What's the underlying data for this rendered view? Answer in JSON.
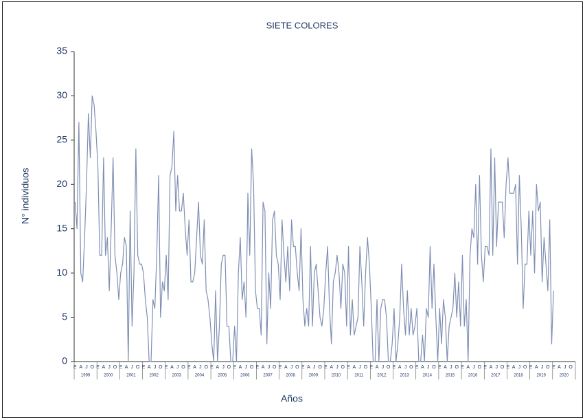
{
  "chart_data": {
    "type": "line",
    "title": "SIETE COLORES",
    "y_label": "N° individuos",
    "x_label": "Años",
    "categories": [
      "E",
      null,
      null,
      "A",
      null,
      null,
      "J",
      null,
      null,
      "O",
      null,
      null,
      "E",
      null,
      null,
      "A",
      null,
      null,
      "J",
      null,
      null,
      "O",
      null,
      null,
      "E",
      null,
      null,
      "A",
      null,
      null,
      "J",
      null,
      null,
      "O",
      null,
      null,
      "E",
      null,
      null,
      "A",
      null,
      null,
      "J",
      null,
      null,
      "O",
      null,
      null,
      "E",
      null,
      null,
      "A",
      null,
      null,
      "J",
      null,
      null,
      "O",
      null,
      null,
      "E",
      null,
      null,
      "A",
      null,
      null,
      "J",
      null,
      null,
      "O",
      null,
      null,
      "E",
      null,
      null,
      "A",
      null,
      null,
      "J",
      null,
      null,
      "O",
      null,
      null,
      "E",
      null,
      null,
      "A",
      null,
      null,
      "J",
      null,
      null,
      "O",
      null,
      null,
      "E",
      null,
      null,
      "A",
      null,
      null,
      "J",
      null,
      null,
      "O",
      null,
      null,
      "E",
      null,
      null,
      "A",
      null,
      null,
      "J",
      null,
      null,
      "O",
      null,
      null,
      "E",
      null,
      null,
      "A",
      null,
      null,
      "J",
      null,
      null,
      "O",
      null,
      null,
      "E",
      null,
      null,
      "A",
      null,
      null,
      "J",
      null,
      null,
      "O",
      null,
      null,
      "E",
      null,
      null,
      "A",
      null,
      null,
      "J",
      null,
      null,
      "O",
      null,
      null,
      "E",
      null,
      null,
      "A",
      null,
      null,
      "J",
      null,
      null,
      "O",
      null,
      null,
      "E",
      null,
      null,
      "A",
      null,
      null,
      "J",
      null,
      null,
      "O",
      null,
      null,
      "E",
      null,
      null,
      "A",
      null,
      null,
      "J",
      null,
      null,
      "O",
      null,
      null,
      "E",
      null,
      null,
      "A",
      null,
      null,
      "J",
      null,
      null,
      "O",
      null,
      null,
      "E",
      null,
      null,
      "A",
      null,
      null,
      "J",
      null,
      null,
      "O",
      null,
      null,
      "E",
      null,
      null,
      "A",
      null,
      null,
      "J",
      null,
      null,
      "O",
      null,
      null,
      "E",
      null,
      null,
      "A",
      null,
      null,
      "J",
      null,
      null,
      "O",
      null,
      null,
      "E",
      null,
      null,
      "A",
      null,
      null,
      "J",
      null,
      null,
      "O",
      null,
      null,
      "E",
      null,
      null,
      "A",
      null,
      null,
      "J",
      null,
      null,
      "O",
      null,
      null
    ],
    "years": [
      "1999",
      "2000",
      "2001",
      "2002",
      "2003",
      "2004",
      "2005",
      "2006",
      "2007",
      "2008",
      "2009",
      "2010",
      "2011",
      "2012",
      "2013",
      "2014",
      "2015",
      "2016",
      "2017",
      "2018",
      "2019",
      "2020"
    ],
    "series": [
      {
        "name": "SIETE COLORES",
        "color": "#7f8fb3",
        "values": [
          18,
          15,
          27,
          10,
          9,
          14,
          20,
          28,
          23,
          30,
          29,
          26,
          22,
          12,
          12,
          23,
          12,
          14,
          8,
          15,
          23,
          12,
          10,
          7,
          10,
          11,
          14,
          13,
          0,
          17,
          4,
          10,
          24,
          12,
          11,
          11,
          10,
          7,
          5,
          0,
          0,
          7,
          6,
          12,
          21,
          5,
          9,
          8,
          12,
          7,
          21,
          22,
          26,
          17,
          21,
          17,
          17,
          19,
          15,
          12,
          16,
          9,
          9,
          10,
          14,
          18,
          12,
          11,
          16,
          8,
          7,
          5,
          2,
          0,
          8,
          0,
          4,
          11,
          12,
          12,
          4,
          4,
          0,
          0,
          4,
          0,
          10,
          14,
          7,
          9,
          5,
          19,
          12,
          24,
          20,
          8,
          6,
          6,
          3,
          18,
          17,
          2,
          10,
          6,
          16,
          17,
          12,
          11,
          7,
          16,
          12,
          9,
          13,
          8,
          16,
          13,
          13,
          10,
          8,
          15,
          7,
          4,
          6,
          4,
          13,
          4,
          10,
          11,
          8,
          5,
          4,
          6,
          10,
          13,
          6,
          2,
          9,
          10,
          12,
          10,
          6,
          11,
          10,
          4,
          13,
          3,
          7,
          3,
          4,
          5,
          13,
          9,
          4,
          10,
          14,
          11,
          6,
          0,
          0,
          7,
          0,
          6,
          7,
          7,
          5,
          0,
          0,
          2,
          6,
          0,
          2,
          5,
          11,
          6,
          3,
          8,
          3,
          6,
          3,
          4,
          6,
          0,
          0,
          3,
          0,
          6,
          5,
          13,
          6,
          11,
          5,
          0,
          6,
          2,
          7,
          5,
          0,
          4,
          5,
          6,
          10,
          5,
          9,
          4,
          12,
          4,
          7,
          0,
          12,
          15,
          14,
          20,
          11,
          21,
          12,
          9,
          13,
          13,
          12,
          24,
          12,
          23,
          13,
          18,
          18,
          18,
          14,
          20,
          23,
          19,
          19,
          19,
          20,
          11,
          21,
          15,
          6,
          11,
          11,
          17,
          12,
          17,
          10,
          20,
          17,
          18,
          9,
          14,
          11,
          8,
          16,
          2,
          8,
          null,
          null,
          null,
          null,
          null,
          null,
          null,
          null,
          null,
          null,
          null
        ]
      }
    ],
    "ylim": [
      0,
      35
    ],
    "yticks": [
      0,
      5,
      10,
      15,
      20,
      25,
      30,
      35
    ]
  }
}
